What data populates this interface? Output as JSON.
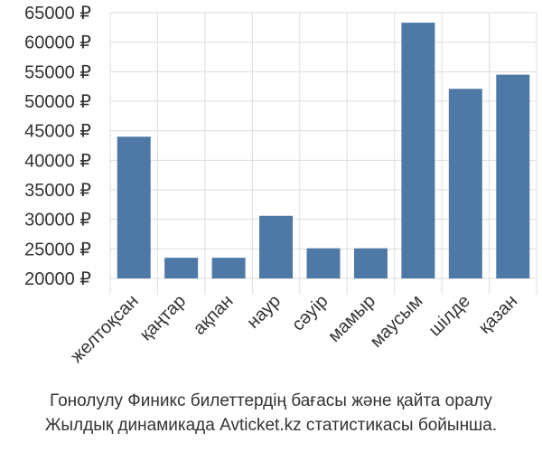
{
  "chart_data": {
    "type": "bar",
    "categories": [
      "желтоқсан",
      "қаңтар",
      "ақпан",
      "наур",
      "сәуір",
      "мамыр",
      "маусым",
      "шілде",
      "қазан"
    ],
    "values": [
      44000,
      23500,
      23500,
      30600,
      25100,
      25100,
      63300,
      52100,
      54500
    ],
    "ylim": [
      20000,
      65000
    ],
    "yticks": [
      20000,
      25000,
      30000,
      35000,
      40000,
      45000,
      50000,
      55000,
      60000,
      65000
    ],
    "tick_labels": [
      "20000 ₽",
      "25000 ₽",
      "30000 ₽",
      "35000 ₽",
      "40000 ₽",
      "45000 ₽",
      "50000 ₽",
      "55000 ₽",
      "60000 ₽",
      "65000 ₽"
    ],
    "bar_color": "#4e79a7",
    "grid": true,
    "xlabel": "",
    "ylabel": ""
  },
  "caption": {
    "line1": "Гонолулу Финикс билеттердің бағасы және қайта оралу",
    "line2": "Жылдық динамикада Avticket.kz статистикасы бойынша."
  }
}
